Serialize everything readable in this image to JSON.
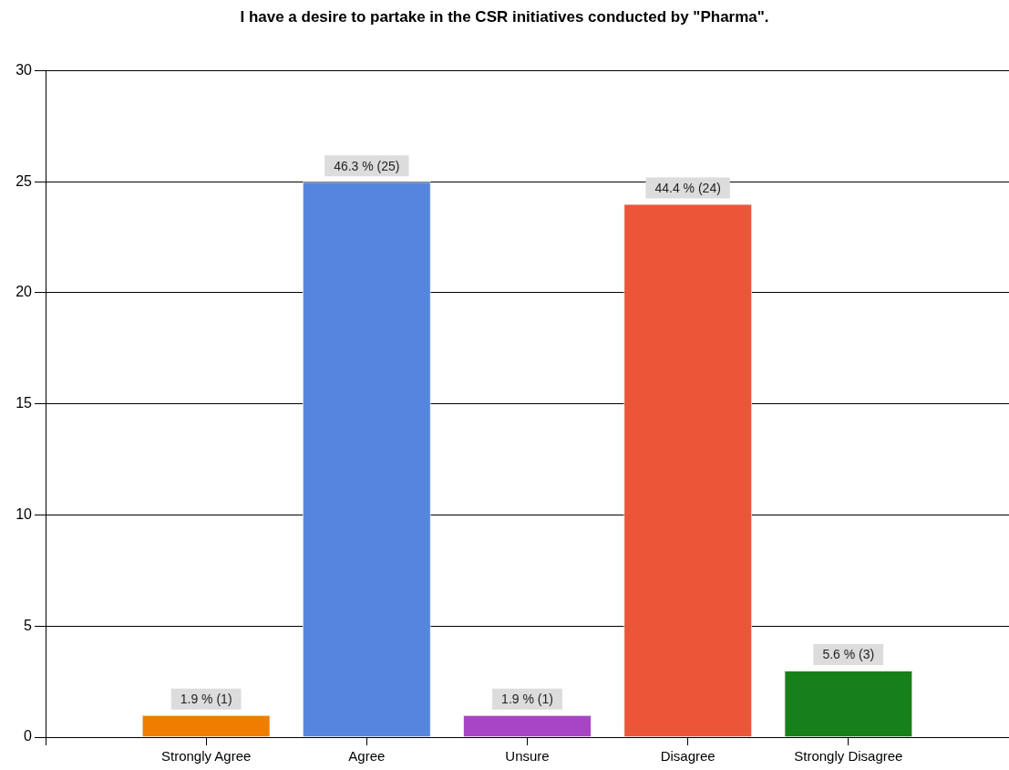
{
  "chart_data": {
    "type": "bar",
    "title": "I have a desire to partake in the CSR initiatives conducted by \"Pharma\".",
    "categories": [
      "Strongly Agree",
      "Agree",
      "Unsure",
      "Disagree",
      "Strongly Disagree"
    ],
    "values": [
      1,
      25,
      1,
      24,
      3
    ],
    "colors": [
      "#ee7d00",
      "#5585dc",
      "#a845c4",
      "#eb5538",
      "#17801a"
    ],
    "value_labels": [
      "1.9 % (1)",
      "46.3 % (25)",
      "1.9 % (1)",
      "44.4 % (24)",
      "5.6 % (3)"
    ],
    "ylim": [
      0,
      30
    ],
    "yticks": [
      0,
      5,
      10,
      15,
      20,
      25,
      30
    ],
    "grid": "y"
  }
}
